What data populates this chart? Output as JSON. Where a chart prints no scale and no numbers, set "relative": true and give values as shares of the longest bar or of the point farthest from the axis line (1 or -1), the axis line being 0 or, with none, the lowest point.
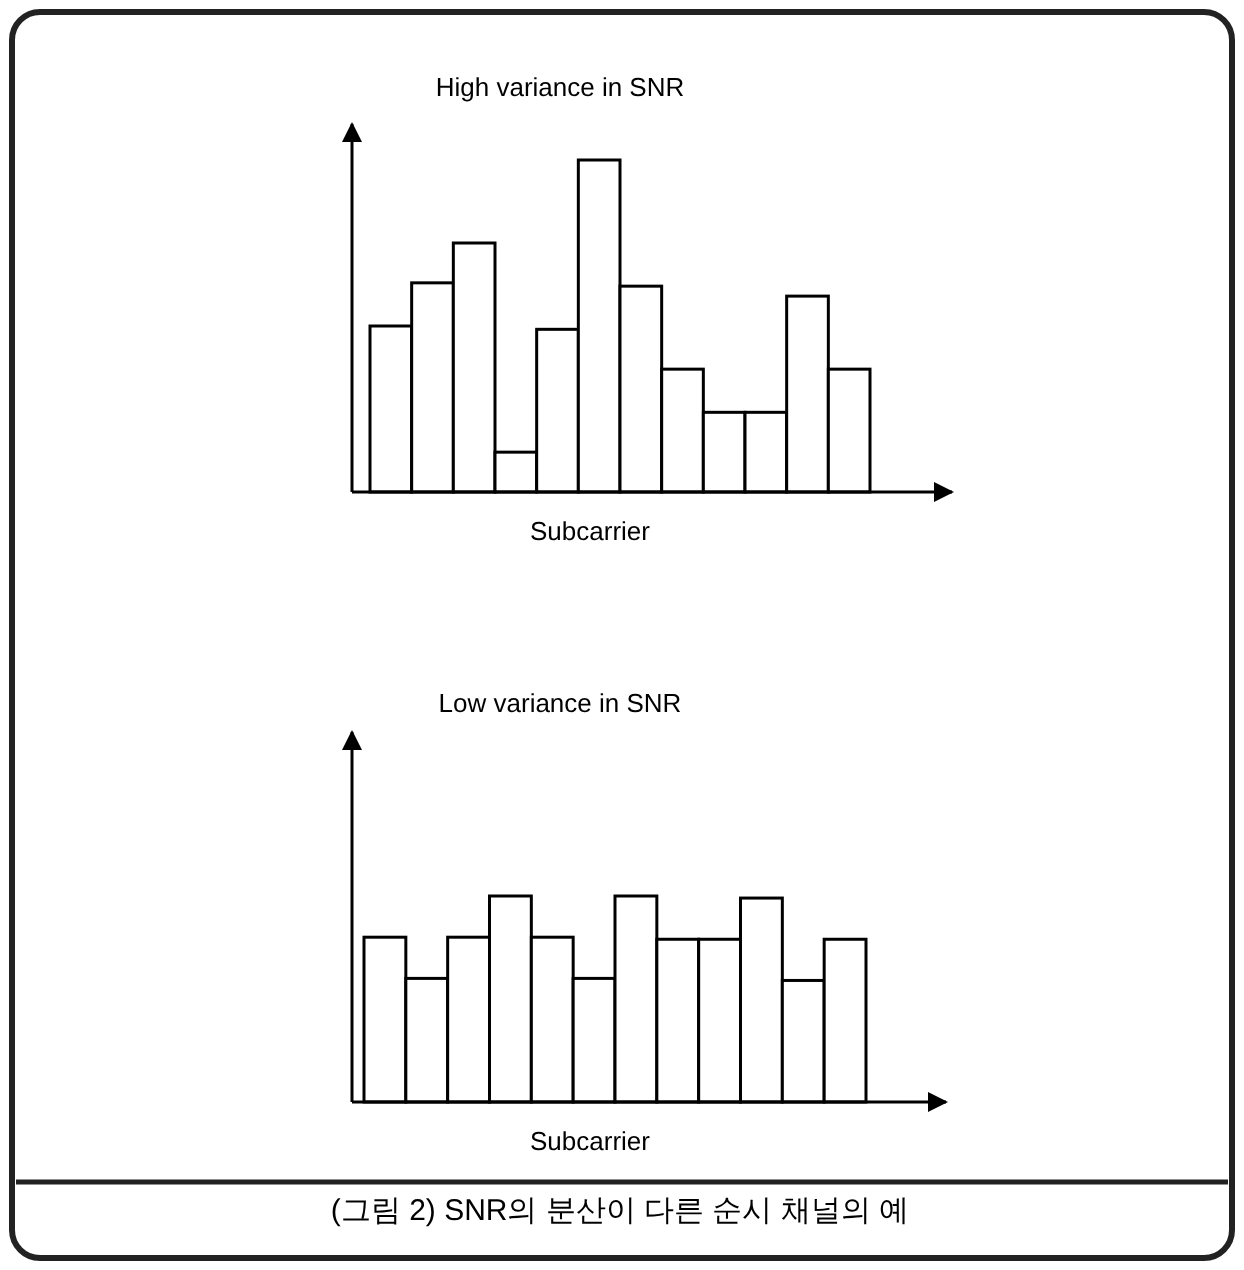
{
  "chart_data": [
    {
      "type": "bar",
      "title": "High variance in SNR",
      "xlabel": "Subcarrier",
      "relative": true,
      "color": "#ffffff",
      "categories": [
        null,
        null,
        null,
        null,
        null,
        null,
        null,
        null,
        null,
        null,
        null,
        null
      ],
      "values": [
        0.5,
        0.63,
        0.75,
        0.12,
        0.49,
        1,
        0.62,
        0.37,
        0.24,
        0.24,
        0.59,
        0.37
      ]
    },
    {
      "type": "bar",
      "title": "Low variance in SNR",
      "xlabel": "Subcarrier",
      "relative": true,
      "color": "#ffffff",
      "categories": [
        null,
        null,
        null,
        null,
        null,
        null,
        null,
        null,
        null,
        null,
        null,
        null
      ],
      "values": [
        0.8,
        0.6,
        0.8,
        1,
        0.8,
        0.6,
        1,
        0.79,
        0.79,
        0.99,
        0.59,
        0.79
      ],
      "annotations": [
        "(그림 2) SNR의 분산이 다른 순시 채널의 예"
      ]
    }
  ]
}
